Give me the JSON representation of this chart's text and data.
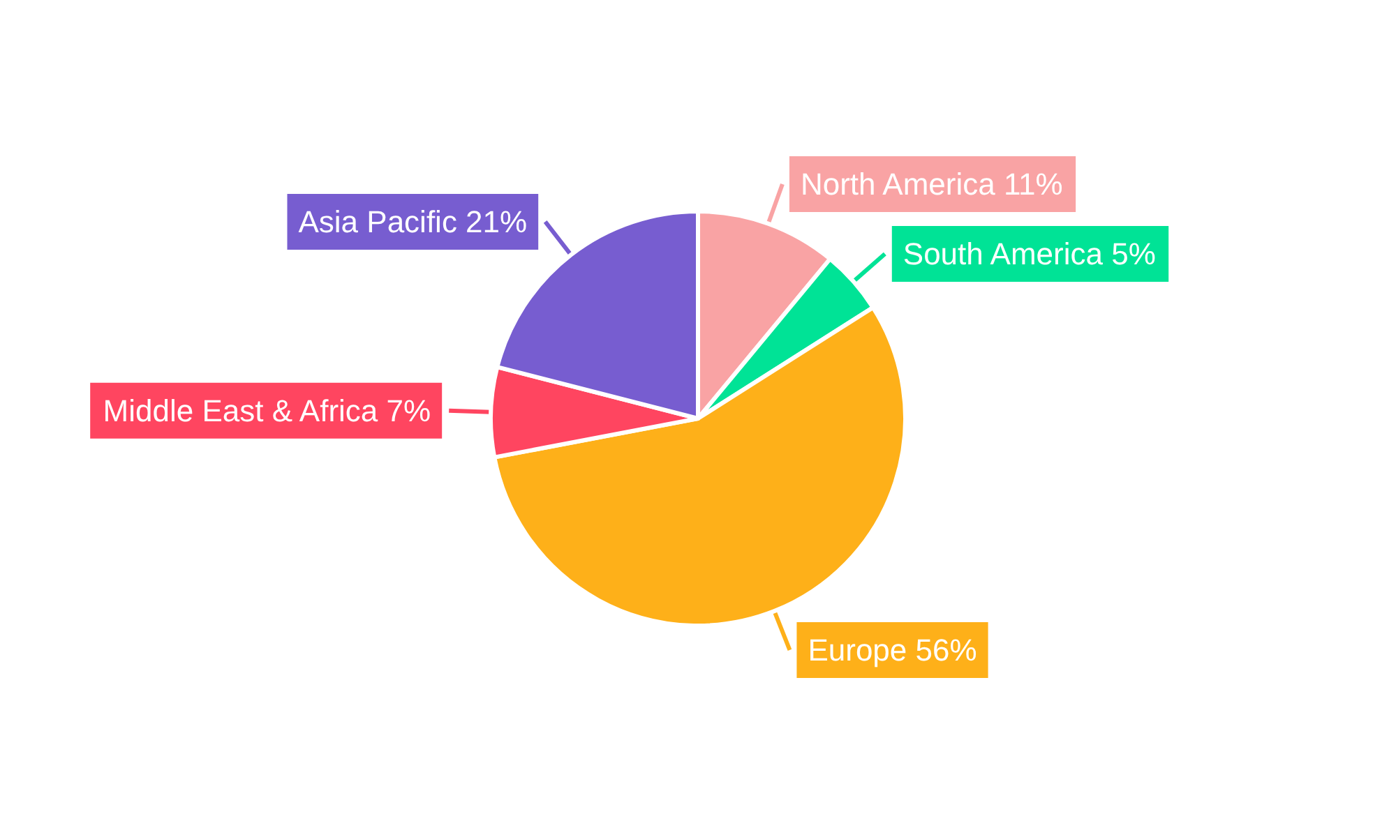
{
  "chart_data": {
    "type": "pie",
    "categories": [
      "North America",
      "South America",
      "Europe",
      "Middle East & Africa",
      "Asia Pacific"
    ],
    "values": [
      11,
      5,
      56,
      7,
      21
    ],
    "value_labels": [
      "11%",
      "5%",
      "56%",
      "7%",
      "21%"
    ],
    "colors": [
      "#f9a3a4",
      "#00e396",
      "#feb019",
      "#ff4560",
      "#775dd0"
    ],
    "legend": false
  }
}
